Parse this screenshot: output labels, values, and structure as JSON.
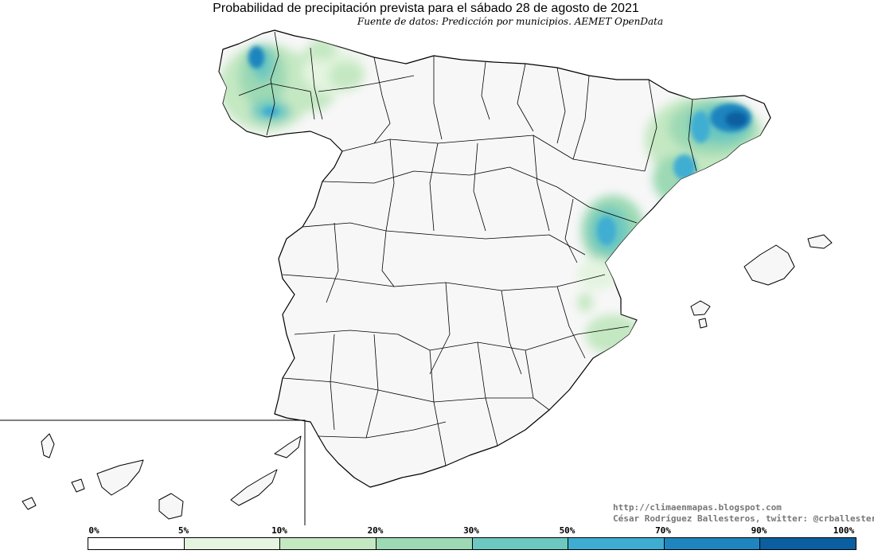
{
  "title": "Probabilidad de precipitación prevista para el sábado 28 de agosto de 2021",
  "source": "Fuente de datos: Predicción por municipios. AEMET OpenData",
  "credits": {
    "website": "http://climaenmapas.blogspot.com",
    "author": "César Rodríguez Ballesteros, twitter: @crballesteros"
  },
  "legend": {
    "labels": [
      "0%",
      "5%",
      "10%",
      "20%",
      "30%",
      "50%",
      "70%",
      "90%",
      "100%"
    ],
    "colors": [
      "#ffffff",
      "#e4f4e0",
      "#c4e8c2",
      "#9cd9b4",
      "#6cc8c0",
      "#3fadd2",
      "#1f85bf",
      "#0b5fa0"
    ]
  },
  "map_colors": {
    "land": "#f7f7f7",
    "border": "#000000"
  }
}
